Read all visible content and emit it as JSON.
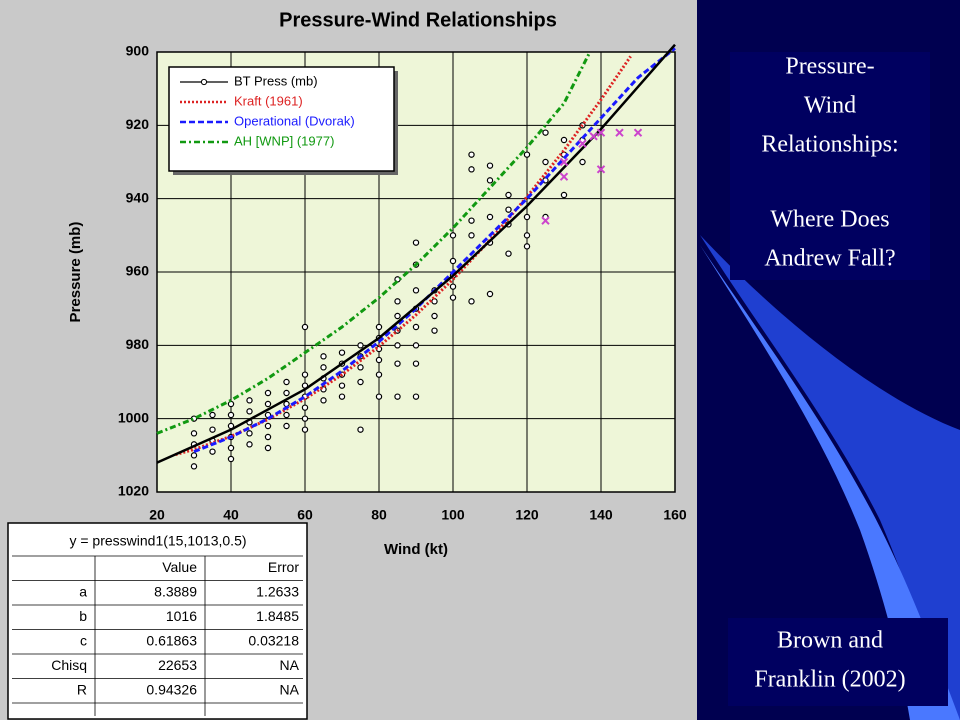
{
  "chart_data": {
    "type": "line",
    "title": "Pressure-Wind Relationships",
    "xlabel": "Wind (kt)",
    "ylabel": "Pressure (mb)",
    "xlim": [
      20,
      160
    ],
    "ylim": [
      900,
      1020
    ],
    "y_reversed": true,
    "xticks": [
      20,
      40,
      60,
      80,
      100,
      120,
      140,
      160
    ],
    "yticks": [
      900,
      920,
      940,
      960,
      980,
      1000,
      1020
    ],
    "grid": true,
    "legend": "upper left",
    "series": [
      {
        "name": "BT Press (mb)",
        "color": "#000000",
        "mode": "markers",
        "x": [
          30,
          30,
          30,
          30,
          30,
          35,
          35,
          35,
          35,
          40,
          40,
          40,
          40,
          40,
          40,
          45,
          45,
          45,
          45,
          45,
          50,
          50,
          50,
          50,
          50,
          50,
          55,
          55,
          55,
          55,
          55,
          60,
          60,
          60,
          60,
          60,
          60,
          60,
          65,
          65,
          65,
          65,
          65,
          70,
          70,
          70,
          70,
          70,
          75,
          75,
          75,
          75,
          75,
          80,
          80,
          80,
          80,
          80,
          80,
          85,
          85,
          85,
          85,
          85,
          85,
          85,
          90,
          90,
          90,
          90,
          90,
          90,
          90,
          90,
          95,
          95,
          95,
          95,
          100,
          100,
          100,
          100,
          100,
          105,
          105,
          105,
          105,
          105,
          110,
          110,
          110,
          110,
          110,
          115,
          115,
          115,
          115,
          120,
          120,
          120,
          120,
          125,
          125,
          125,
          125,
          130,
          130,
          130,
          135,
          135,
          135
        ],
        "values": [
          1000,
          1004,
          1007,
          1010,
          1013,
          999,
          1003,
          1006,
          1009,
          996,
          999,
          1002,
          1005,
          1008,
          1011,
          995,
          998,
          1001,
          1004,
          1007,
          993,
          996,
          999,
          1002,
          1005,
          1008,
          990,
          993,
          996,
          999,
          1002,
          975,
          988,
          991,
          994,
          997,
          1000,
          1003,
          983,
          986,
          989,
          992,
          995,
          982,
          985,
          988,
          991,
          994,
          980,
          983,
          986,
          990,
          1003,
          975,
          978,
          981,
          984,
          988,
          994,
          962,
          968,
          972,
          976,
          980,
          985,
          994,
          952,
          958,
          965,
          970,
          975,
          980,
          985,
          994,
          965,
          968,
          972,
          976,
          950,
          957,
          961,
          964,
          967,
          928,
          932,
          946,
          950,
          968,
          931,
          935,
          945,
          952,
          966,
          939,
          943,
          947,
          955,
          945,
          950,
          953,
          928,
          922,
          930,
          935,
          945,
          924,
          928,
          939,
          920,
          924,
          930
        ]
      },
      {
        "name": "Kraft (1961)",
        "color": "#dd2222",
        "mode": "lines",
        "dash": "2,2",
        "x": [
          25,
          30,
          40,
          50,
          60,
          70,
          80,
          90,
          100,
          110,
          120,
          130,
          140,
          148
        ],
        "values": [
          1009.8,
          1008.4,
          1004.8,
          1000.2,
          994.6,
          988,
          980.3,
          971.7,
          962,
          951.3,
          939.5,
          926.8,
          913,
          901.2
        ]
      },
      {
        "name": "Operational (Dvorak)",
        "color": "#1a1aff",
        "mode": "lines",
        "dash": "6,3",
        "x": [
          30,
          40,
          50,
          60,
          70,
          80,
          90,
          100,
          110,
          120,
          130,
          140,
          150,
          160
        ],
        "values": [
          1009,
          1005,
          1000,
          994,
          987,
          979,
          970,
          960,
          950,
          940,
          929,
          918,
          907,
          899
        ]
      },
      {
        "name": "AH [WNP] (1977)",
        "color": "#119911",
        "mode": "lines",
        "dash": "6,3,2,3",
        "x": [
          20,
          30,
          40,
          50,
          60,
          70,
          80,
          90,
          100,
          110,
          120,
          130,
          137
        ],
        "values": [
          1004,
          1000,
          995,
          989,
          982,
          975,
          967,
          958,
          948,
          937,
          926,
          914,
          900
        ]
      },
      {
        "color": "#000000",
        "mode": "fit",
        "x": [
          20,
          40,
          60,
          80,
          100,
          120,
          140,
          160
        ],
        "values": [
          1012,
          1003,
          992,
          978,
          961,
          942,
          921,
          898
        ]
      },
      {
        "color": "#cc44cc",
        "mode": "crosses",
        "x": [
          125,
          130,
          130,
          140,
          135,
          138,
          140,
          145,
          150
        ],
        "values": [
          946,
          934,
          930,
          932,
          925,
          923,
          922,
          922,
          922
        ]
      }
    ]
  },
  "fit_table": {
    "equation": "y = presswind1(15,1013,0.5)",
    "columns": [
      "Value",
      "Error"
    ],
    "rows": [
      [
        "a",
        8.3889,
        1.2633
      ],
      [
        "b",
        1016,
        1.8485
      ],
      [
        "c",
        0.61863,
        0.03218
      ],
      [
        "Chisq",
        22653,
        "NA"
      ],
      [
        "R",
        0.94326,
        "NA"
      ]
    ]
  },
  "slide": {
    "heading": [
      "Pressure-",
      "Wind",
      "Relationships:"
    ],
    "question": [
      "Where Does",
      "Andrew Fall?"
    ],
    "citation": [
      "Brown and",
      "Franklin (2002)"
    ]
  }
}
